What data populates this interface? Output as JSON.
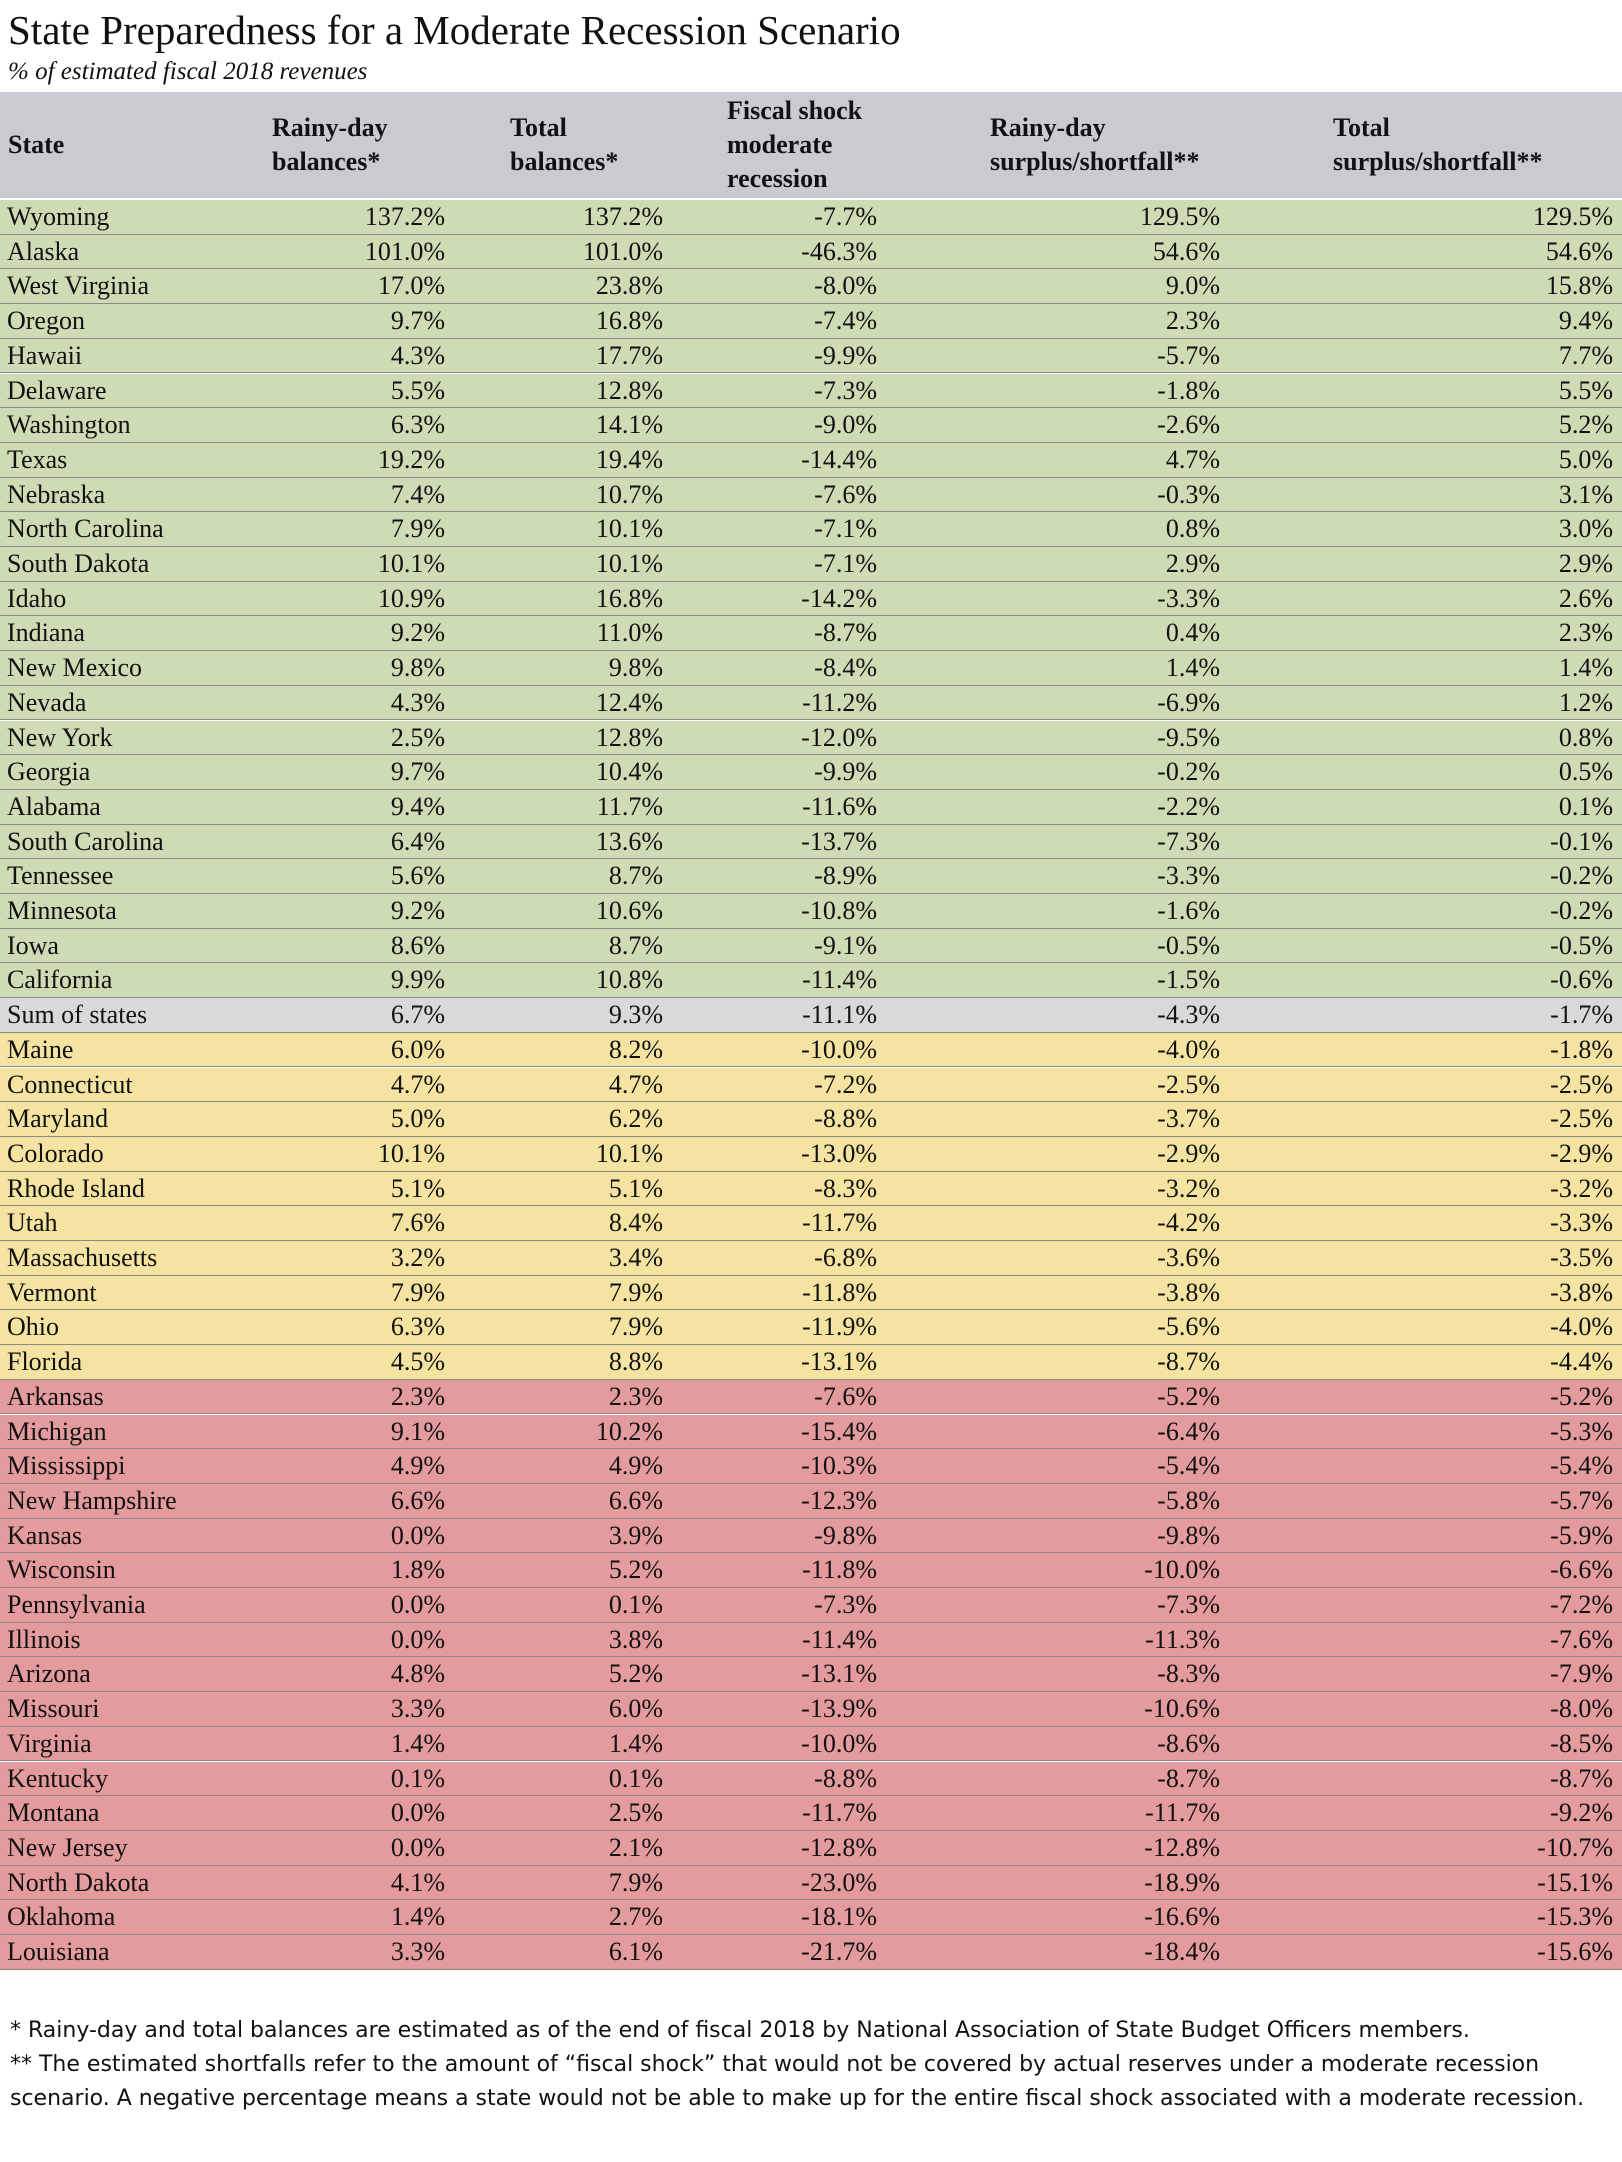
{
  "title": "State Preparedness for a Moderate Recession Scenario",
  "subtitle": "% of estimated fiscal 2018 revenues",
  "table": {
    "header_color": "#c9cbd1",
    "columns": [
      [
        "State"
      ],
      [
        "Rainy-day",
        "balances*"
      ],
      [
        "Total",
        "balances*"
      ],
      [
        "Fiscal shock",
        "moderate",
        "recession"
      ],
      [
        "Rainy-day",
        "surplus/shortfall**"
      ],
      [
        "Total",
        "surplus/shortfall**"
      ]
    ],
    "groups": [
      {
        "color": "#cedcb6",
        "rows": [
          [
            "Wyoming",
            "137.2%",
            "137.2%",
            "-7.7%",
            "129.5%",
            "129.5%"
          ],
          [
            "Alaska",
            "101.0%",
            "101.0%",
            "-46.3%",
            "54.6%",
            "54.6%"
          ],
          [
            "West Virginia",
            "17.0%",
            "23.8%",
            "-8.0%",
            "9.0%",
            "15.8%"
          ],
          [
            "Oregon",
            "9.7%",
            "16.8%",
            "-7.4%",
            "2.3%",
            "9.4%"
          ],
          [
            "Hawaii",
            "4.3%",
            "17.7%",
            "-9.9%",
            "-5.7%",
            "7.7%"
          ],
          [
            "Delaware",
            "5.5%",
            "12.8%",
            "-7.3%",
            "-1.8%",
            "5.5%"
          ],
          [
            "Washington",
            "6.3%",
            "14.1%",
            "-9.0%",
            "-2.6%",
            "5.2%"
          ],
          [
            "Texas",
            "19.2%",
            "19.4%",
            "-14.4%",
            "4.7%",
            "5.0%"
          ],
          [
            "Nebraska",
            "7.4%",
            "10.7%",
            "-7.6%",
            "-0.3%",
            "3.1%"
          ],
          [
            "North Carolina",
            "7.9%",
            "10.1%",
            "-7.1%",
            "0.8%",
            "3.0%"
          ],
          [
            "South Dakota",
            "10.1%",
            "10.1%",
            "-7.1%",
            "2.9%",
            "2.9%"
          ],
          [
            "Idaho",
            "10.9%",
            "16.8%",
            "-14.2%",
            "-3.3%",
            "2.6%"
          ],
          [
            "Indiana",
            "9.2%",
            "11.0%",
            "-8.7%",
            "0.4%",
            "2.3%"
          ],
          [
            "New Mexico",
            "9.8%",
            "9.8%",
            "-8.4%",
            "1.4%",
            "1.4%"
          ],
          [
            "Nevada",
            "4.3%",
            "12.4%",
            "-11.2%",
            "-6.9%",
            "1.2%"
          ],
          [
            "New York",
            "2.5%",
            "12.8%",
            "-12.0%",
            "-9.5%",
            "0.8%"
          ],
          [
            "Georgia",
            "9.7%",
            "10.4%",
            "-9.9%",
            "-0.2%",
            "0.5%"
          ],
          [
            "Alabama",
            "9.4%",
            "11.7%",
            "-11.6%",
            "-2.2%",
            "0.1%"
          ],
          [
            "South Carolina",
            "6.4%",
            "13.6%",
            "-13.7%",
            "-7.3%",
            "-0.1%"
          ],
          [
            "Tennessee",
            "5.6%",
            "8.7%",
            "-8.9%",
            "-3.3%",
            "-0.2%"
          ],
          [
            "Minnesota",
            "9.2%",
            "10.6%",
            "-10.8%",
            "-1.6%",
            "-0.2%"
          ],
          [
            "Iowa",
            "8.6%",
            "8.7%",
            "-9.1%",
            "-0.5%",
            "-0.5%"
          ],
          [
            "California",
            "9.9%",
            "10.8%",
            "-11.4%",
            "-1.5%",
            "-0.6%"
          ]
        ]
      },
      {
        "color": "#d9d9d9",
        "rows": [
          [
            "Sum of states",
            "6.7%",
            "9.3%",
            "-11.1%",
            "-4.3%",
            "-1.7%"
          ]
        ]
      },
      {
        "color": "#f5e3a1",
        "rows": [
          [
            "Maine",
            "6.0%",
            "8.2%",
            "-10.0%",
            "-4.0%",
            "-1.8%"
          ],
          [
            "Connecticut",
            "4.7%",
            "4.7%",
            "-7.2%",
            "-2.5%",
            "-2.5%"
          ],
          [
            "Maryland",
            "5.0%",
            "6.2%",
            "-8.8%",
            "-3.7%",
            "-2.5%"
          ],
          [
            "Colorado",
            "10.1%",
            "10.1%",
            "-13.0%",
            "-2.9%",
            "-2.9%"
          ],
          [
            "Rhode Island",
            "5.1%",
            "5.1%",
            "-8.3%",
            "-3.2%",
            "-3.2%"
          ],
          [
            "Utah",
            "7.6%",
            "8.4%",
            "-11.7%",
            "-4.2%",
            "-3.3%"
          ],
          [
            "Massachusetts",
            "3.2%",
            "3.4%",
            "-6.8%",
            "-3.6%",
            "-3.5%"
          ],
          [
            "Vermont",
            "7.9%",
            "7.9%",
            "-11.8%",
            "-3.8%",
            "-3.8%"
          ],
          [
            "Ohio",
            "6.3%",
            "7.9%",
            "-11.9%",
            "-5.6%",
            "-4.0%"
          ],
          [
            "Florida",
            "4.5%",
            "8.8%",
            "-13.1%",
            "-8.7%",
            "-4.4%"
          ]
        ]
      },
      {
        "color": "#e49b9d",
        "rows": [
          [
            "Arkansas",
            "2.3%",
            "2.3%",
            "-7.6%",
            "-5.2%",
            "-5.2%"
          ],
          [
            "Michigan",
            "9.1%",
            "10.2%",
            "-15.4%",
            "-6.4%",
            "-5.3%"
          ],
          [
            "Mississippi",
            "4.9%",
            "4.9%",
            "-10.3%",
            "-5.4%",
            "-5.4%"
          ],
          [
            "New Hampshire",
            "6.6%",
            "6.6%",
            "-12.3%",
            "-5.8%",
            "-5.7%"
          ],
          [
            "Kansas",
            "0.0%",
            "3.9%",
            "-9.8%",
            "-9.8%",
            "-5.9%"
          ],
          [
            "Wisconsin",
            "1.8%",
            "5.2%",
            "-11.8%",
            "-10.0%",
            "-6.6%"
          ],
          [
            "Pennsylvania",
            "0.0%",
            "0.1%",
            "-7.3%",
            "-7.3%",
            "-7.2%"
          ],
          [
            "Illinois",
            "0.0%",
            "3.8%",
            "-11.4%",
            "-11.3%",
            "-7.6%"
          ],
          [
            "Arizona",
            "4.8%",
            "5.2%",
            "-13.1%",
            "-8.3%",
            "-7.9%"
          ],
          [
            "Missouri",
            "3.3%",
            "6.0%",
            "-13.9%",
            "-10.6%",
            "-8.0%"
          ],
          [
            "Virginia",
            "1.4%",
            "1.4%",
            "-10.0%",
            "-8.6%",
            "-8.5%"
          ],
          [
            "Kentucky",
            "0.1%",
            "0.1%",
            "-8.8%",
            "-8.7%",
            "-8.7%"
          ],
          [
            "Montana",
            "0.0%",
            "2.5%",
            "-11.7%",
            "-11.7%",
            "-9.2%"
          ],
          [
            "New Jersey",
            "0.0%",
            "2.1%",
            "-12.8%",
            "-12.8%",
            "-10.7%"
          ],
          [
            "North Dakota",
            "4.1%",
            "7.9%",
            "-23.0%",
            "-18.9%",
            "-15.1%"
          ],
          [
            "Oklahoma",
            "1.4%",
            "2.7%",
            "-18.1%",
            "-16.6%",
            "-15.3%"
          ],
          [
            "Louisiana",
            "3.3%",
            "6.1%",
            "-21.7%",
            "-18.4%",
            "-15.6%"
          ]
        ]
      }
    ]
  },
  "footnotes": [
    "* Rainy-day and total balances are estimated as of the end of fiscal 2018 by National Association of State Budget Officers members.",
    "** The estimated shortfalls refer to the amount of “fiscal shock” that would not be covered by actual reserves under a moderate recession scenario. A negative percentage means a state would not be able to make up for the entire fiscal shock associated with a moderate recession."
  ]
}
